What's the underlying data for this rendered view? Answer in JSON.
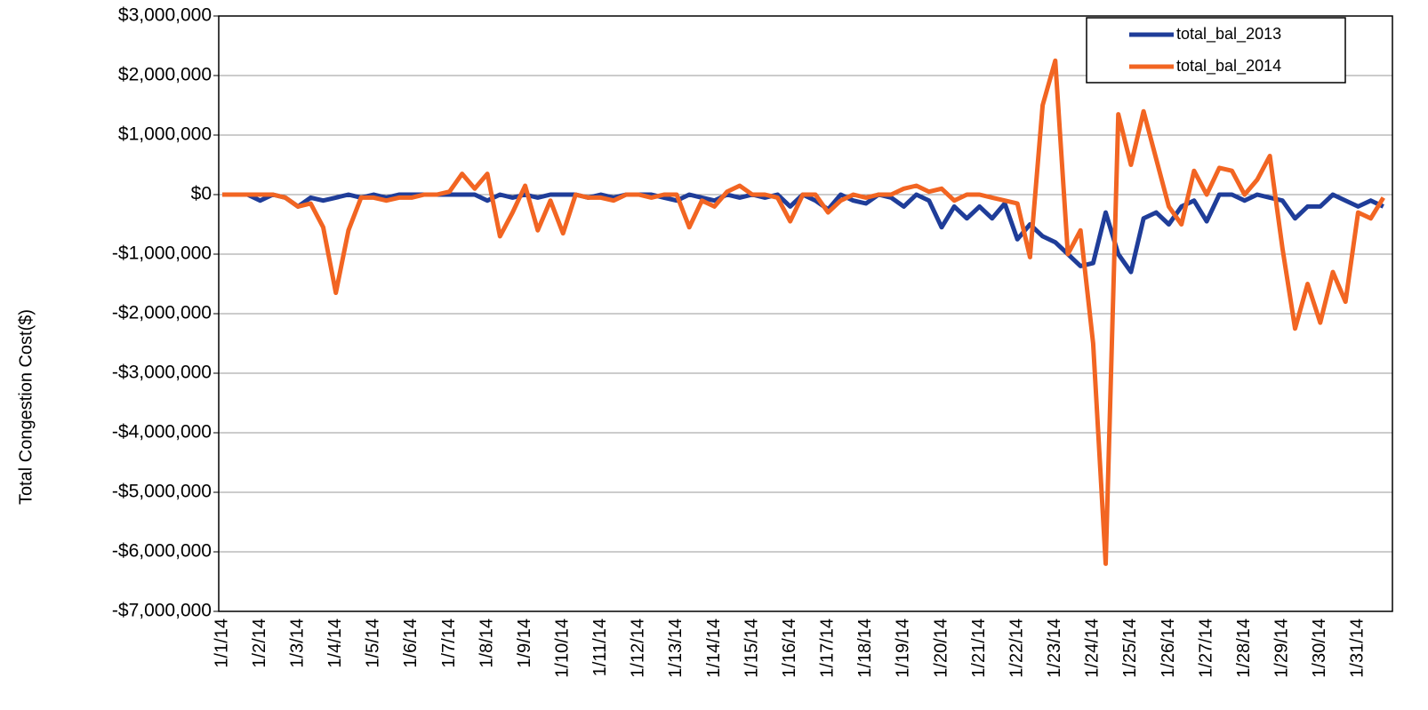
{
  "chart_data": {
    "type": "line",
    "y_label": "Total Congestion Cost($)",
    "categories": [
      "1/1/14",
      null,
      null,
      "1/2/14",
      null,
      null,
      "1/3/14",
      null,
      null,
      "1/4/14",
      null,
      null,
      "1/5/14",
      null,
      null,
      "1/6/14",
      null,
      null,
      "1/7/14",
      null,
      null,
      "1/8/14",
      null,
      null,
      "1/9/14",
      null,
      null,
      "1/10/14",
      null,
      null,
      "1/11/14",
      null,
      null,
      "1/12/14",
      null,
      null,
      "1/13/14",
      null,
      null,
      "1/14/14",
      null,
      null,
      "1/15/14",
      null,
      null,
      "1/16/14",
      null,
      null,
      "1/17/14",
      null,
      null,
      "1/18/14",
      null,
      null,
      "1/19/14",
      null,
      null,
      "1/20/14",
      null,
      null,
      "1/21/14",
      null,
      null,
      "1/22/14",
      null,
      null,
      "1/23/14",
      null,
      null,
      "1/24/14",
      null,
      null,
      "1/25/14",
      null,
      null,
      "1/26/14",
      null,
      null,
      "1/27/14",
      null,
      null,
      "1/28/14",
      null,
      null,
      "1/29/14",
      null,
      null,
      "1/30/14",
      null,
      null,
      "1/31/14",
      null,
      null
    ],
    "series": [
      {
        "name": "total_bal_2013",
        "color": "#1f3d99",
        "values": [
          0,
          0,
          0,
          -100000,
          0,
          -50000,
          -200000,
          -50000,
          -100000,
          -50000,
          0,
          -50000,
          0,
          -50000,
          0,
          0,
          0,
          0,
          0,
          0,
          0,
          -100000,
          0,
          -50000,
          0,
          -50000,
          0,
          0,
          0,
          -50000,
          0,
          -50000,
          0,
          0,
          0,
          -50000,
          -100000,
          0,
          -50000,
          -100000,
          0,
          -50000,
          0,
          -50000,
          0,
          -200000,
          0,
          -100000,
          -250000,
          0,
          -100000,
          -150000,
          0,
          -50000,
          -200000,
          0,
          -100000,
          -550000,
          -200000,
          -400000,
          -200000,
          -400000,
          -150000,
          -750000,
          -500000,
          -700000,
          -800000,
          -1000000,
          -1200000,
          -1150000,
          -300000,
          -1000000,
          -1300000,
          -400000,
          -300000,
          -500000,
          -200000,
          -100000,
          -450000,
          0,
          0,
          -100000,
          0,
          -50000,
          -100000,
          -400000,
          -200000,
          -200000,
          0,
          -100000,
          -200000,
          -100000,
          -200000
        ]
      },
      {
        "name": "total_bal_2014",
        "color": "#f26522",
        "values": [
          0,
          0,
          0,
          0,
          0,
          -50000,
          -200000,
          -150000,
          -550000,
          -1650000,
          -600000,
          -50000,
          -50000,
          -100000,
          -50000,
          -50000,
          0,
          0,
          50000,
          350000,
          100000,
          350000,
          -700000,
          -300000,
          150000,
          -600000,
          -100000,
          -650000,
          0,
          -50000,
          -50000,
          -100000,
          0,
          0,
          -50000,
          0,
          0,
          -550000,
          -100000,
          -200000,
          50000,
          150000,
          0,
          0,
          -50000,
          -450000,
          0,
          0,
          -300000,
          -100000,
          0,
          -50000,
          0,
          0,
          100000,
          150000,
          50000,
          100000,
          -100000,
          0,
          0,
          -50000,
          -100000,
          -150000,
          -1050000,
          1500000,
          2250000,
          -1000000,
          -600000,
          -2500000,
          -6200000,
          1350000,
          500000,
          1400000,
          600000,
          -200000,
          -500000,
          400000,
          0,
          450000,
          400000,
          0,
          250000,
          650000,
          -900000,
          -2250000,
          -1500000,
          -2150000,
          -1300000,
          -1800000,
          -300000,
          -400000,
          -50000
        ]
      }
    ],
    "ylim": [
      -7000000,
      3000000
    ],
    "yticks": [
      {
        "value": -7000000,
        "label": "-$7,000,000"
      },
      {
        "value": -6000000,
        "label": "-$6,000,000"
      },
      {
        "value": -5000000,
        "label": "-$5,000,000"
      },
      {
        "value": -4000000,
        "label": "-$4,000,000"
      },
      {
        "value": -3000000,
        "label": "-$3,000,000"
      },
      {
        "value": -2000000,
        "label": "-$2,000,000"
      },
      {
        "value": -1000000,
        "label": "-$1,000,000"
      },
      {
        "value": 0,
        "label": "$0"
      },
      {
        "value": 1000000,
        "label": "$1,000,000"
      },
      {
        "value": 2000000,
        "label": "$2,000,000"
      },
      {
        "value": 3000000,
        "label": "$3,000,000"
      }
    ],
    "grid": true,
    "legend": "top-right"
  }
}
